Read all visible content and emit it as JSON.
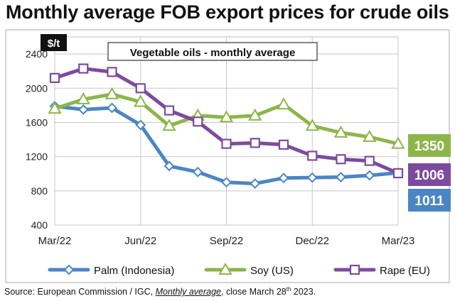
{
  "title": "Monthly average FOB export prices for crude oils",
  "source": {
    "prefix": "Source: European Commission / IGC, ",
    "italic": "Monthly average",
    "middle": ", close March 28",
    "sup": "th",
    "suffix": " 2023."
  },
  "chart_data": {
    "type": "line",
    "title": "Vegetable oils - monthly average",
    "unit_label": "$/t",
    "xlabel": "",
    "ylabel": "$/t",
    "ylim": [
      400,
      2600
    ],
    "yticks": [
      400,
      800,
      1200,
      1600,
      2000,
      2400
    ],
    "x": [
      "Mar/22",
      "Apr/22",
      "May/22",
      "Jun/22",
      "Jul/22",
      "Aug/22",
      "Sep/22",
      "Oct/22",
      "Nov/22",
      "Dec/22",
      "Jan/23",
      "Feb/23",
      "Mar/23"
    ],
    "xtick_labels": [
      "Mar/22",
      "Jun/22",
      "Sep/22",
      "Dec/22",
      "Mar/23"
    ],
    "grid": true,
    "legend_position": "bottom",
    "series": [
      {
        "name": "Palm (Indonesia)",
        "color": "#4a86c5",
        "marker": "diamond",
        "end_label": "1011",
        "values": [
          1790,
          1750,
          1770,
          1570,
          1090,
          1020,
          900,
          885,
          950,
          955,
          960,
          980,
          1011
        ]
      },
      {
        "name": "Soy (US)",
        "color": "#8db64a",
        "marker": "triangle",
        "end_label": "1350",
        "values": [
          1760,
          1870,
          1930,
          1840,
          1560,
          1680,
          1660,
          1680,
          1810,
          1560,
          1480,
          1430,
          1350
        ]
      },
      {
        "name": "Rape (EU)",
        "color": "#7d4b9e",
        "marker": "square",
        "end_label": "1006",
        "values": [
          2120,
          2230,
          2190,
          2000,
          1740,
          1610,
          1350,
          1360,
          1340,
          1210,
          1170,
          1150,
          1006
        ]
      }
    ]
  }
}
